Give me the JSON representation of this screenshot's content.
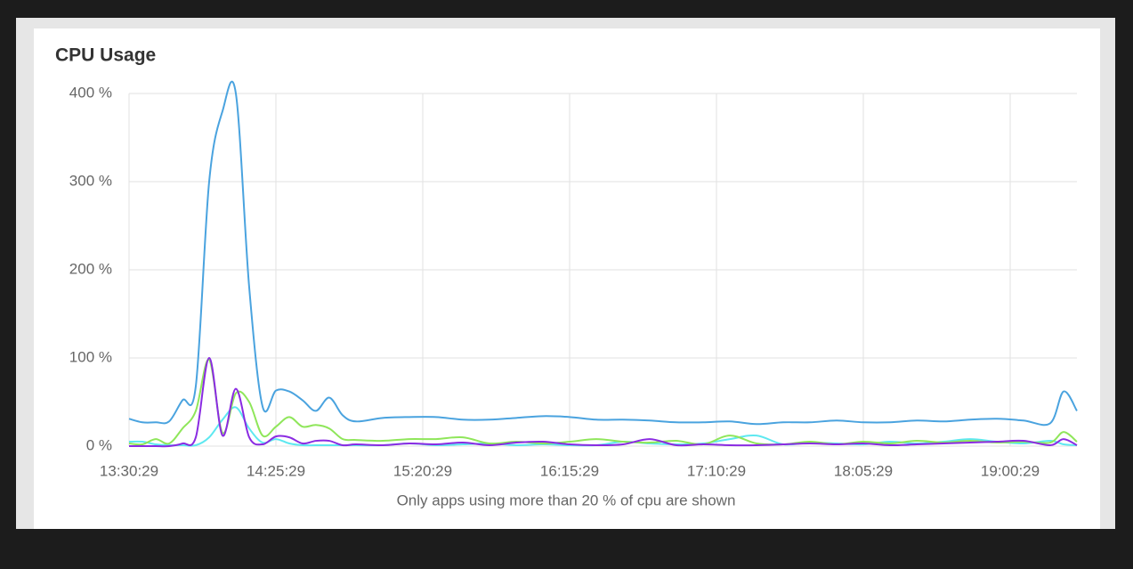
{
  "chart_data": {
    "type": "line",
    "title": "CPU Usage",
    "note": "Only apps using more than 20 % of cpu are shown",
    "x": [
      "13:30:29",
      "13:35:29",
      "13:40:29",
      "13:45:29",
      "13:50:29",
      "13:55:29",
      "14:00:29",
      "14:05:29",
      "14:10:29",
      "14:15:29",
      "14:20:29",
      "14:25:29",
      "14:30:29",
      "14:35:29",
      "14:40:29",
      "14:45:29",
      "14:50:29",
      "14:55:29",
      "15:05:29",
      "15:15:29",
      "15:25:29",
      "15:35:29",
      "15:45:29",
      "15:55:29",
      "16:05:29",
      "16:15:29",
      "16:25:29",
      "16:35:29",
      "16:45:29",
      "16:55:29",
      "17:05:29",
      "17:15:29",
      "17:25:29",
      "17:35:29",
      "17:45:29",
      "17:55:29",
      "18:05:29",
      "18:15:29",
      "18:25:29",
      "18:35:29",
      "18:45:29",
      "18:55:29",
      "19:05:29",
      "19:15:29",
      "19:20:29",
      "19:25:29"
    ],
    "series": [
      {
        "color": "#5ee8f0",
        "values": [
          5,
          5,
          2,
          1,
          1,
          1,
          10,
          30,
          44,
          20,
          4,
          8,
          3,
          1,
          1,
          1,
          1,
          1,
          1,
          3,
          1,
          2,
          3,
          1,
          2,
          1,
          1,
          5,
          3,
          2,
          3,
          8,
          12,
          2,
          4,
          3,
          2,
          5,
          3,
          5,
          8,
          5,
          3,
          6,
          2,
          1
        ]
      },
      {
        "color": "#8fe65a",
        "values": [
          3,
          2,
          8,
          3,
          20,
          40,
          98,
          15,
          60,
          50,
          12,
          22,
          33,
          22,
          24,
          20,
          8,
          7,
          6,
          8,
          8,
          10,
          3,
          5,
          3,
          5,
          8,
          5,
          4,
          6,
          2,
          12,
          3,
          2,
          5,
          2,
          5,
          3,
          6,
          4,
          6,
          4,
          5,
          4,
          16,
          5
        ]
      },
      {
        "color": "#8a2be2",
        "values": [
          0,
          0,
          0,
          0,
          3,
          10,
          100,
          12,
          65,
          10,
          2,
          11,
          10,
          3,
          6,
          6,
          1,
          2,
          1,
          3,
          2,
          4,
          1,
          4,
          5,
          2,
          1,
          2,
          8,
          1,
          2,
          1,
          1,
          2,
          3,
          2,
          3,
          1,
          2,
          3,
          4,
          5,
          6,
          1,
          8,
          1
        ]
      },
      {
        "color": "#4aa3df",
        "values": [
          31,
          27,
          27,
          28,
          52,
          68,
          300,
          380,
          400,
          180,
          45,
          63,
          62,
          52,
          40,
          55,
          35,
          28,
          32,
          33,
          33,
          30,
          30,
          32,
          34,
          33,
          30,
          30,
          29,
          27,
          27,
          28,
          25,
          27,
          27,
          29,
          27,
          27,
          29,
          28,
          30,
          31,
          29,
          26,
          62,
          40
        ]
      }
    ],
    "xlim": [
      "13:30:29",
      "19:25:29"
    ],
    "xticks": [
      "13:30:29",
      "14:25:29",
      "15:20:29",
      "16:15:29",
      "17:10:29",
      "18:05:29",
      "19:00:29"
    ],
    "ylim": [
      0,
      400
    ],
    "yticks": [
      {
        "value": 0,
        "label": "0 %"
      },
      {
        "value": 100,
        "label": "100 %"
      },
      {
        "value": 200,
        "label": "200 %"
      },
      {
        "value": 300,
        "label": "300 %"
      },
      {
        "value": 400,
        "label": "400 %"
      }
    ],
    "grid": true
  }
}
